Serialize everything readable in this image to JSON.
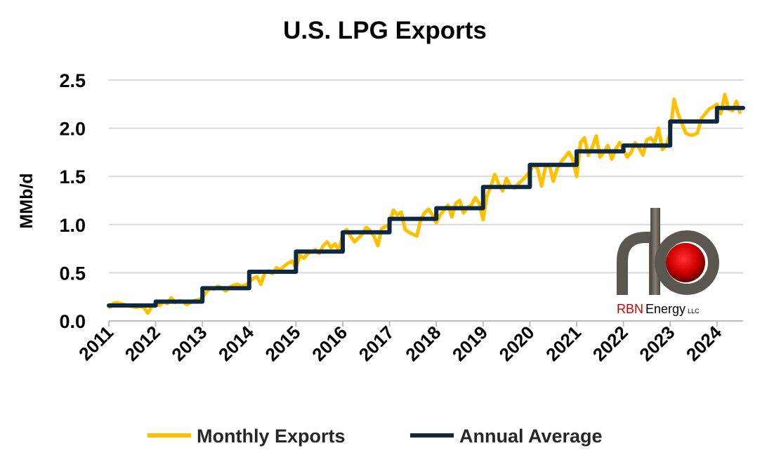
{
  "chart_data": {
    "type": "line",
    "title": "U.S. LPG Exports",
    "xlabel": "",
    "ylabel": "MMb/d",
    "ylim": [
      0,
      2.5
    ],
    "yticks": [
      "0.0",
      "0.5",
      "1.0",
      "1.5",
      "2.0",
      "2.5"
    ],
    "xticks": [
      "2011",
      "2012",
      "2013",
      "2014",
      "2015",
      "2016",
      "2017",
      "2018",
      "2019",
      "2020",
      "2021",
      "2022",
      "2023",
      "2024"
    ],
    "grid": true,
    "legend_placement": "bottom",
    "series": [
      {
        "name": "Monthly Exports",
        "color": "#FFC000",
        "start": "2011-01",
        "frequency": "monthly",
        "values": [
          0.13,
          0.18,
          0.19,
          0.18,
          0.17,
          0.16,
          0.15,
          0.14,
          0.15,
          0.14,
          0.08,
          0.15,
          0.17,
          0.16,
          0.2,
          0.18,
          0.24,
          0.19,
          0.21,
          0.2,
          0.17,
          0.19,
          0.21,
          0.22,
          0.24,
          0.3,
          0.34,
          0.33,
          0.36,
          0.34,
          0.31,
          0.35,
          0.37,
          0.38,
          0.36,
          0.37,
          0.4,
          0.44,
          0.46,
          0.38,
          0.5,
          0.52,
          0.49,
          0.55,
          0.53,
          0.57,
          0.6,
          0.62,
          0.55,
          0.68,
          0.65,
          0.7,
          0.72,
          0.74,
          0.7,
          0.78,
          0.82,
          0.76,
          0.8,
          0.73,
          0.9,
          0.95,
          0.88,
          0.82,
          0.86,
          0.9,
          0.97,
          0.94,
          0.88,
          0.78,
          0.96,
          0.98,
          1.0,
          1.15,
          1.1,
          1.13,
          0.95,
          0.92,
          0.9,
          0.88,
          1.05,
          1.12,
          1.16,
          1.1,
          1.02,
          1.1,
          1.15,
          1.2,
          1.08,
          1.22,
          1.25,
          1.12,
          1.18,
          1.2,
          1.28,
          1.22,
          1.05,
          1.3,
          1.4,
          1.52,
          1.42,
          1.35,
          1.48,
          1.4,
          1.38,
          1.42,
          1.46,
          1.5,
          1.55,
          1.62,
          1.58,
          1.4,
          1.6,
          1.62,
          1.45,
          1.58,
          1.65,
          1.7,
          1.75,
          1.68,
          1.5,
          1.85,
          1.9,
          1.72,
          1.8,
          1.92,
          1.7,
          1.75,
          1.82,
          1.68,
          1.78,
          1.85,
          1.78,
          1.7,
          1.75,
          1.85,
          1.8,
          1.72,
          1.88,
          1.9,
          1.85,
          2.0,
          1.78,
          1.82,
          1.95,
          2.3,
          2.15,
          2.05,
          1.95,
          1.93,
          1.93,
          1.95,
          2.1,
          2.15,
          2.2,
          2.22,
          2.25,
          2.15,
          2.35,
          2.2,
          2.18,
          2.28,
          2.15
        ]
      },
      {
        "name": "Annual Average",
        "color": "#0E2841",
        "years": [
          2011,
          2012,
          2013,
          2014,
          2015,
          2016,
          2017,
          2018,
          2019,
          2020,
          2021,
          2022,
          2023,
          2024
        ],
        "values": [
          0.16,
          0.2,
          0.34,
          0.51,
          0.72,
          0.92,
          1.06,
          1.17,
          1.39,
          1.62,
          1.76,
          1.82,
          2.07,
          2.21
        ]
      }
    ]
  },
  "logo": {
    "text_red": "RBN",
    "text_dark": "Energy",
    "text_small": "LLC"
  }
}
